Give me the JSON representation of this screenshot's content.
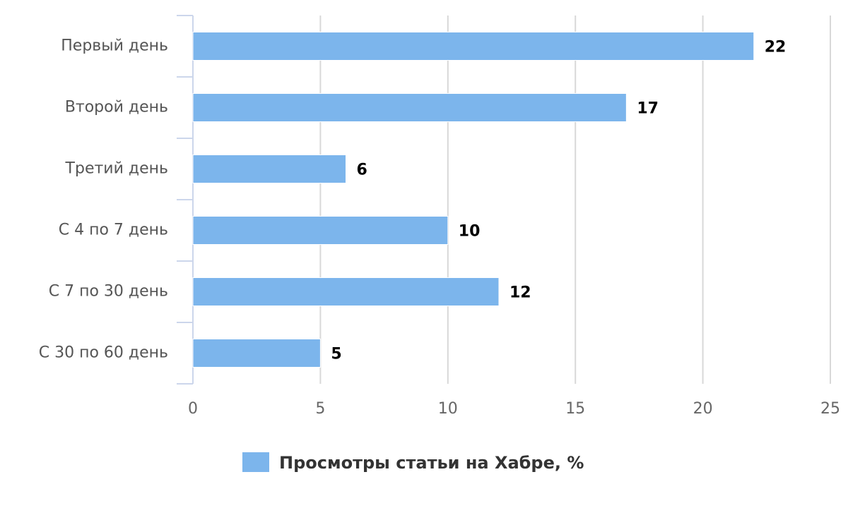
{
  "chart_data": {
    "type": "bar",
    "orientation": "horizontal",
    "categories": [
      "Первый день",
      "Второй день",
      "Третий день",
      "С 4 по 7 день",
      "С 7 по 30 день",
      "С 30 по 60 день"
    ],
    "series": [
      {
        "name": "Просмотры статьи на Хабре, %",
        "color": "#7cb5ec",
        "values": [
          22,
          17,
          6,
          10,
          12,
          5
        ]
      }
    ],
    "xlim": [
      0,
      25
    ],
    "xticks": [
      0,
      5,
      10,
      15,
      20,
      25
    ],
    "grid": true,
    "legend": "bottom"
  }
}
